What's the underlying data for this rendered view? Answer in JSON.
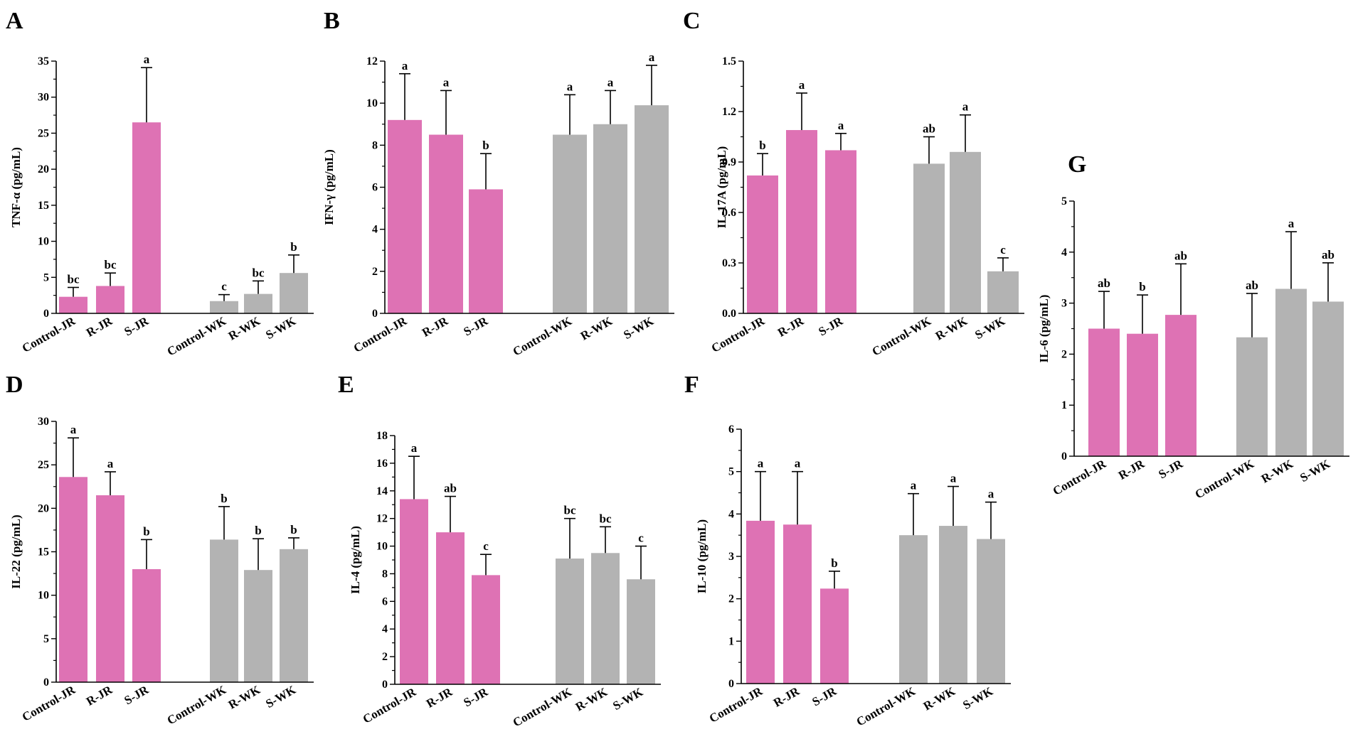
{
  "colors": {
    "JR": "#de72b4",
    "WK": "#b3b3b3",
    "axis": "#000000"
  },
  "chart_data": [
    {
      "panel": "A",
      "type": "bar",
      "ylabel": "TNF-α (pg/mL)",
      "ylim": [
        0,
        35
      ],
      "yticks": [
        0,
        5,
        10,
        15,
        20,
        25,
        30,
        35
      ],
      "ytick_labels": [
        "0",
        "5",
        "10",
        "15",
        "20",
        "25",
        "30",
        "35"
      ],
      "categories": [
        "Control-JR",
        "R-JR",
        "S-JR",
        "Control-WK",
        "R-WK",
        "S-WK"
      ],
      "groups": [
        "JR",
        "JR",
        "JR",
        "WK",
        "WK",
        "WK"
      ],
      "values": [
        2.3,
        3.8,
        26.5,
        1.7,
        2.7,
        5.6
      ],
      "errors": [
        1.3,
        1.8,
        7.6,
        0.9,
        1.8,
        2.5
      ],
      "significance": [
        "bc",
        "bc",
        "a",
        "c",
        "bc",
        "b"
      ]
    },
    {
      "panel": "B",
      "type": "bar",
      "ylabel": "IFN-γ (pg/mL)",
      "ylim": [
        0,
        12
      ],
      "yticks": [
        0,
        2,
        4,
        6,
        8,
        10,
        12
      ],
      "ytick_labels": [
        "0",
        "2",
        "4",
        "6",
        "8",
        "10",
        "12"
      ],
      "categories": [
        "Control-JR",
        "R-JR",
        "S-JR",
        "Control-WK",
        "R-WK",
        "S-WK"
      ],
      "groups": [
        "JR",
        "JR",
        "JR",
        "WK",
        "WK",
        "WK"
      ],
      "values": [
        9.2,
        8.5,
        5.9,
        8.5,
        9.0,
        9.9
      ],
      "errors": [
        2.2,
        2.1,
        1.7,
        1.9,
        1.6,
        1.9
      ],
      "significance": [
        "a",
        "a",
        "b",
        "a",
        "a",
        "a"
      ]
    },
    {
      "panel": "C",
      "type": "bar",
      "ylabel": "IL-17A (pg/mL)",
      "ylim": [
        0,
        1.5
      ],
      "yticks": [
        0,
        0.3,
        0.6,
        0.9,
        1.2,
        1.5
      ],
      "ytick_labels": [
        "0.0",
        "0.3",
        "0.6",
        "0.9",
        "1.2",
        "1.5"
      ],
      "categories": [
        "Control-JR",
        "R-JR",
        "S-JR",
        "Control-WK",
        "R-WK",
        "S-WK"
      ],
      "groups": [
        "JR",
        "JR",
        "JR",
        "WK",
        "WK",
        "WK"
      ],
      "values": [
        0.82,
        1.09,
        0.97,
        0.89,
        0.96,
        0.25
      ],
      "errors": [
        0.13,
        0.22,
        0.1,
        0.16,
        0.22,
        0.08
      ],
      "significance": [
        "b",
        "a",
        "a",
        "ab",
        "a",
        "c"
      ]
    },
    {
      "panel": "D",
      "type": "bar",
      "ylabel": "IL-22 (pg/mL)",
      "ylim": [
        0,
        30
      ],
      "yticks": [
        0,
        5,
        10,
        15,
        20,
        25,
        30
      ],
      "ytick_labels": [
        "0",
        "5",
        "10",
        "15",
        "20",
        "25",
        "30"
      ],
      "categories": [
        "Control-JR",
        "R-JR",
        "S-JR",
        "Control-WK",
        "R-WK",
        "S-WK"
      ],
      "groups": [
        "JR",
        "JR",
        "JR",
        "WK",
        "WK",
        "WK"
      ],
      "values": [
        23.6,
        21.5,
        13.0,
        16.4,
        12.9,
        15.3
      ],
      "errors": [
        4.5,
        2.7,
        3.4,
        3.8,
        3.6,
        1.3
      ],
      "significance": [
        "a",
        "a",
        "b",
        "b",
        "b",
        "b"
      ]
    },
    {
      "panel": "E",
      "type": "bar",
      "ylabel": "IL-4 (pg/mL)",
      "ylim": [
        0,
        18
      ],
      "yticks": [
        0,
        2,
        4,
        6,
        8,
        10,
        12,
        14,
        16,
        18
      ],
      "ytick_labels": [
        "0",
        "2",
        "4",
        "6",
        "8",
        "10",
        "12",
        "14",
        "16",
        "18"
      ],
      "categories": [
        "Control-JR",
        "R-JR",
        "S-JR",
        "Control-WK",
        "R-WK",
        "S-WK"
      ],
      "groups": [
        "JR",
        "JR",
        "JR",
        "WK",
        "WK",
        "WK"
      ],
      "values": [
        13.4,
        11.0,
        7.9,
        9.1,
        9.5,
        7.6
      ],
      "errors": [
        3.1,
        2.6,
        1.5,
        2.9,
        1.9,
        2.4
      ],
      "significance": [
        "a",
        "ab",
        "c",
        "bc",
        "bc",
        "c"
      ]
    },
    {
      "panel": "F",
      "type": "bar",
      "ylabel": "IL-10 (pg/mL)",
      "ylim": [
        0,
        6
      ],
      "yticks": [
        0,
        1,
        2,
        3,
        4,
        5,
        6
      ],
      "ytick_labels": [
        "0",
        "1",
        "2",
        "3",
        "4",
        "5",
        "6"
      ],
      "categories": [
        "Control-JR",
        "R-JR",
        "S-JR",
        "Control-WK",
        "R-WK",
        "S-WK"
      ],
      "groups": [
        "JR",
        "JR",
        "JR",
        "WK",
        "WK",
        "WK"
      ],
      "values": [
        3.84,
        3.75,
        2.24,
        3.5,
        3.72,
        3.41
      ],
      "errors": [
        1.16,
        1.25,
        0.41,
        0.98,
        0.93,
        0.87
      ],
      "significance": [
        "a",
        "a",
        "b",
        "a",
        "a",
        "a"
      ]
    },
    {
      "panel": "G",
      "type": "bar",
      "ylabel": "IL-6 (pg/mL)",
      "ylim": [
        0,
        5
      ],
      "yticks": [
        0,
        1,
        2,
        3,
        4,
        5
      ],
      "ytick_labels": [
        "0",
        "1",
        "2",
        "3",
        "4",
        "5"
      ],
      "categories": [
        "Control-JR",
        "R-JR",
        "S-JR",
        "Control-WK",
        "R-WK",
        "S-WK"
      ],
      "groups": [
        "JR",
        "JR",
        "JR",
        "WK",
        "WK",
        "WK"
      ],
      "values": [
        2.5,
        2.4,
        2.77,
        2.33,
        3.28,
        3.03
      ],
      "errors": [
        0.73,
        0.76,
        1.0,
        0.86,
        1.12,
        0.76
      ],
      "significance": [
        "ab",
        "b",
        "ab",
        "ab",
        "a",
        "ab"
      ]
    }
  ]
}
